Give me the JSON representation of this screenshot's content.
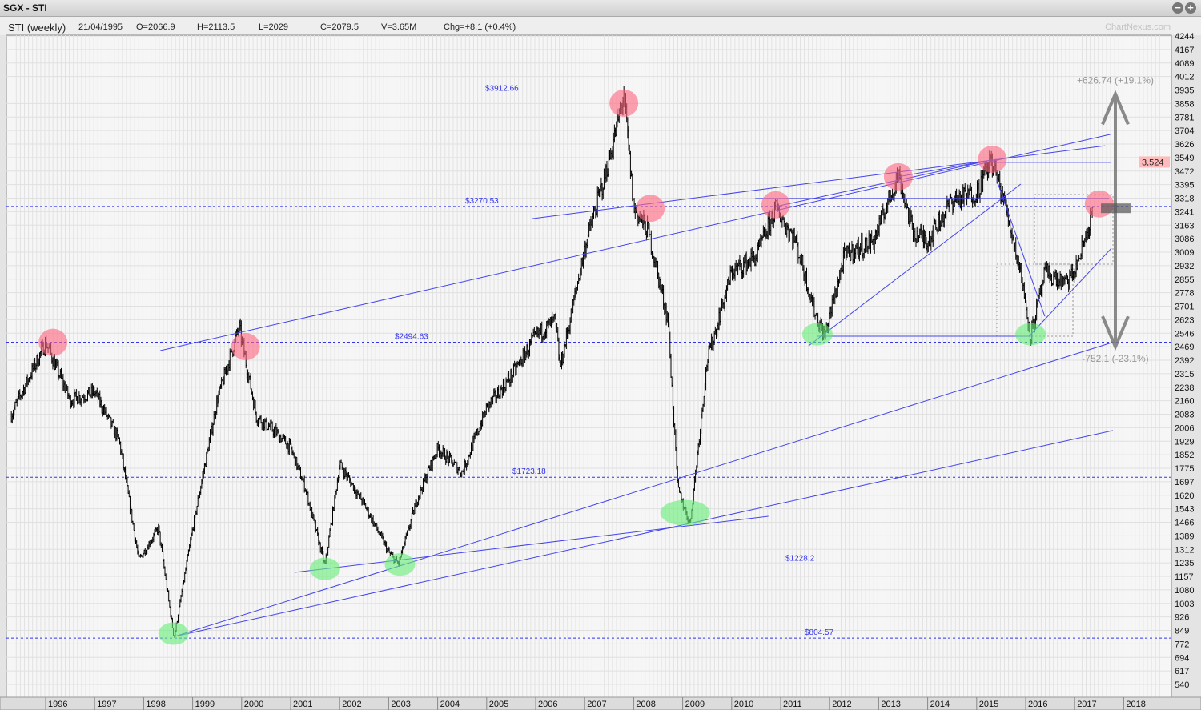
{
  "window": {
    "title": "SGX - STI"
  },
  "info": {
    "series": "STI (weekly)",
    "date": "21/04/1995",
    "open": "O=2066.9",
    "high": "H=2113.5",
    "low": "L=2029",
    "close": "C=2079.5",
    "volume": "V=3.65M",
    "change": "Chg=+8.1 (+0.4%)",
    "watermark": "ChartNexus.com"
  },
  "controls": {
    "zoom_out": "−",
    "zoom_in": "+"
  },
  "chart_data": {
    "type": "candlestick-weekly",
    "title": "SGX - STI",
    "xlabel": "",
    "ylabel": "",
    "xlim": [
      1995.3,
      2018.8
    ],
    "ylim": [
      540,
      4244
    ],
    "yscale": "linear",
    "grid": true,
    "x_ticks": [
      "1996",
      "1997",
      "1998",
      "1999",
      "2000",
      "2001",
      "2002",
      "2003",
      "2004",
      "2005",
      "2006",
      "2007",
      "2008",
      "2009",
      "2010",
      "2011",
      "2012",
      "2013",
      "2014",
      "2015",
      "2016",
      "2017",
      "2018"
    ],
    "y_ticks": [
      "4244",
      "4167",
      "4089",
      "4012",
      "3935",
      "3858",
      "3781",
      "3704",
      "3626",
      "3549",
      "3472",
      "3395",
      "3318",
      "3241",
      "3163",
      "3086",
      "3009",
      "2932",
      "2855",
      "2778",
      "2701",
      "2623",
      "2546",
      "2469",
      "2392",
      "2315",
      "2238",
      "2160",
      "2083",
      "2006",
      "1929",
      "1852",
      "1775",
      "1697",
      "1620",
      "1543",
      "1466",
      "1389",
      "1312",
      "1235",
      "1157",
      "1080",
      "1003",
      "926",
      "849",
      "772",
      "694",
      "617",
      "540"
    ],
    "price_path": [
      [
        1995.3,
        2080
      ],
      [
        1996.0,
        2494
      ],
      [
        1996.5,
        2163
      ],
      [
        1997.0,
        2210
      ],
      [
        1997.5,
        1935
      ],
      [
        1997.9,
        1250
      ],
      [
        1998.3,
        1432
      ],
      [
        1998.62,
        805
      ],
      [
        1999.0,
        1432
      ],
      [
        1999.5,
        2163
      ],
      [
        1999.95,
        2582
      ],
      [
        2000.3,
        2070
      ],
      [
        2000.7,
        1980
      ],
      [
        2001.0,
        1889
      ],
      [
        2001.3,
        1660
      ],
      [
        2001.7,
        1215
      ],
      [
        2002.0,
        1797
      ],
      [
        2002.5,
        1569
      ],
      [
        2003.0,
        1294
      ],
      [
        2003.2,
        1228
      ],
      [
        2003.6,
        1615
      ],
      [
        2004.0,
        1889
      ],
      [
        2004.5,
        1751
      ],
      [
        2005.0,
        2118
      ],
      [
        2005.5,
        2300
      ],
      [
        2006.0,
        2529
      ],
      [
        2006.4,
        2620
      ],
      [
        2006.5,
        2346
      ],
      [
        2007.0,
        3032
      ],
      [
        2007.5,
        3535
      ],
      [
        2007.8,
        3912
      ],
      [
        2008.0,
        3261
      ],
      [
        2008.3,
        3124
      ],
      [
        2008.7,
        2620
      ],
      [
        2008.9,
        1660
      ],
      [
        2009.15,
        1456
      ],
      [
        2009.5,
        2392
      ],
      [
        2010.0,
        2895
      ],
      [
        2010.5,
        2986
      ],
      [
        2010.9,
        3261
      ],
      [
        2011.3,
        3078
      ],
      [
        2011.7,
        2666
      ],
      [
        2011.9,
        2529
      ],
      [
        2012.3,
        2986
      ],
      [
        2012.9,
        3078
      ],
      [
        2013.4,
        3454
      ],
      [
        2013.7,
        3124
      ],
      [
        2014.0,
        3078
      ],
      [
        2014.5,
        3307
      ],
      [
        2015.0,
        3352
      ],
      [
        2015.3,
        3540
      ],
      [
        2015.6,
        3261
      ],
      [
        2015.9,
        2895
      ],
      [
        2016.1,
        2529
      ],
      [
        2016.4,
        2895
      ],
      [
        2016.8,
        2826
      ],
      [
        2017.0,
        2895
      ],
      [
        2017.3,
        3169
      ],
      [
        2017.37,
        3260
      ]
    ],
    "levels": [
      {
        "value": 3912.66,
        "label": "$3912.66"
      },
      {
        "value": 3270.53,
        "label": "$3270.53"
      },
      {
        "value": 2494.63,
        "label": "$2494.63"
      },
      {
        "value": 1723.18,
        "label": "$1723.18"
      },
      {
        "value": 1228.2,
        "label": "$1228.2"
      },
      {
        "value": 804.57,
        "label": "$804.57"
      }
    ],
    "current_marker": {
      "value": 3524,
      "label": "3,524",
      "color": "#ffbbbb"
    },
    "trendlines": [
      [
        [
          1998.34,
          2447
        ],
        [
          2017.73,
          3682
        ]
      ],
      [
        [
          2005.93,
          3201
        ],
        [
          2017.62,
          3617
        ]
      ],
      [
        [
          1998.63,
          814
        ],
        [
          2017.81,
          2497
        ]
      ],
      [
        [
          1998.63,
          814
        ],
        [
          2017.78,
          1990
        ]
      ],
      [
        [
          2001.08,
          1180
        ],
        [
          2010.75,
          1500
        ]
      ],
      [
        [
          2010.48,
          3316
        ],
        [
          2017.7,
          3316
        ]
      ],
      [
        [
          2011.57,
          2474
        ],
        [
          2015.9,
          3398
        ]
      ],
      [
        [
          2011.74,
          2529
        ],
        [
          2016.15,
          2529
        ]
      ],
      [
        [
          2016.07,
          2529
        ],
        [
          2017.75,
          3032
        ]
      ],
      [
        [
          2015.41,
          3421
        ],
        [
          2016.39,
          2643
        ]
      ],
      [
        [
          2015.3,
          3522
        ],
        [
          2017.75,
          3522
        ]
      ],
      [
        [
          2010.9,
          3270
        ],
        [
          2015.3,
          3535
        ]
      ],
      [
        [
          2013.4,
          3440
        ],
        [
          2015.3,
          3535
        ]
      ]
    ],
    "peaks": [
      [
        1996.15,
        2494
      ],
      [
        2000.08,
        2470
      ],
      [
        2007.8,
        3860
      ],
      [
        2008.34,
        3260
      ],
      [
        2010.9,
        3280
      ],
      [
        2013.4,
        3440
      ],
      [
        2015.32,
        3540
      ],
      [
        2017.5,
        3285
      ]
    ],
    "troughs": [
      [
        1998.61,
        830
      ],
      [
        2001.7,
        1200
      ],
      [
        2003.23,
        1225
      ],
      [
        2009.05,
        1520
      ],
      [
        2011.75,
        2540
      ],
      [
        2016.1,
        2540
      ]
    ],
    "measure": {
      "x": 2017.83,
      "top": 3912.66,
      "bottom": 2469,
      "mid": 3260,
      "up_label": "+626.74 (+19.1%)",
      "down_label": "-752.1 (-23.1%)"
    },
    "colors": {
      "trendline": "#4444ee",
      "level": "#3333ee",
      "peak": "#ff6680",
      "trough": "#66ee77",
      "price": "#000000"
    }
  }
}
